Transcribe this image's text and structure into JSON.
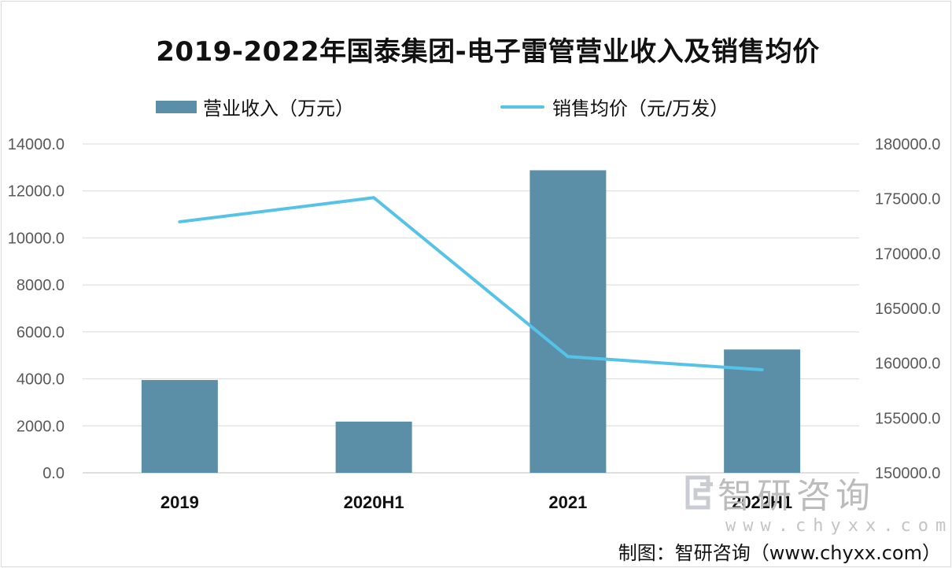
{
  "chart_data": {
    "type": "bar",
    "title": "2019-2022年国泰集团-电子雷管营业收入及销售均价",
    "categories": [
      "2019",
      "2020H1",
      "2021",
      "2022H1"
    ],
    "series": [
      {
        "name": "营业收入（万元）",
        "type": "bar",
        "axis": "left",
        "values": [
          3950,
          2180,
          12880,
          5250
        ],
        "color": "#5b8fa8"
      },
      {
        "name": "销售均价（元/万发）",
        "type": "line",
        "axis": "right",
        "values": [
          172900,
          175100,
          160600,
          159400
        ],
        "color": "#55c3e8"
      }
    ],
    "y_left": {
      "ylim": [
        0,
        14000
      ],
      "ticks": [
        "0.0",
        "2000.0",
        "4000.0",
        "6000.0",
        "8000.0",
        "10000.0",
        "12000.0",
        "14000.0"
      ]
    },
    "y_right": {
      "ylim": [
        150000,
        180000
      ],
      "ticks": [
        "150000.0",
        "155000.0",
        "160000.0",
        "165000.0",
        "170000.0",
        "175000.0",
        "180000.0"
      ]
    },
    "grid": true,
    "legend": "top"
  },
  "watermark": {
    "name": "智研咨询",
    "url": "www.chyxx.com"
  },
  "source": "制图：智研咨询（www.chyxx.com）"
}
